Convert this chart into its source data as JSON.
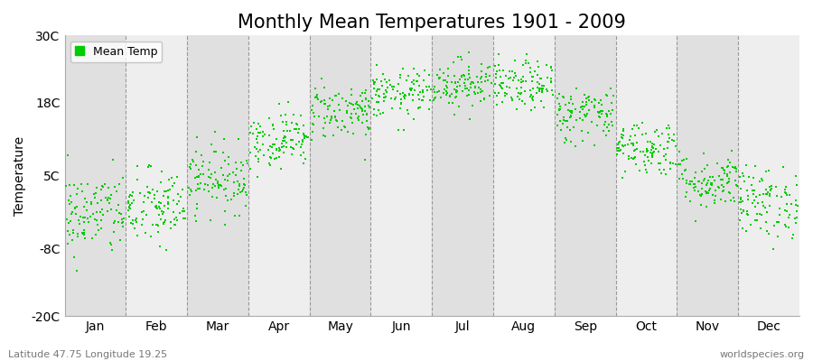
{
  "title": "Monthly Mean Temperatures 1901 - 2009",
  "ylabel": "Temperature",
  "ylim": [
    -20,
    30
  ],
  "yticks": [
    -20,
    -8,
    5,
    18,
    30
  ],
  "ytick_labels": [
    "-20C",
    "-8C",
    "5C",
    "18C",
    "30C"
  ],
  "months": [
    "Jan",
    "Feb",
    "Mar",
    "Apr",
    "May",
    "Jun",
    "Jul",
    "Aug",
    "Sep",
    "Oct",
    "Nov",
    "Dec"
  ],
  "dot_color": "#00cc00",
  "background_color": "#eeeeee",
  "alt_band_color": "#e0e0e0",
  "figure_bg": "#ffffff",
  "legend_label": "Mean Temp",
  "subtitle_left": "Latitude 47.75 Longitude 19.25",
  "subtitle_right": "worldspecies.org",
  "monthly_means": [
    -1.8,
    -0.8,
    4.5,
    11.5,
    16.5,
    19.5,
    21.5,
    21.0,
    16.0,
    10.0,
    4.0,
    0.2
  ],
  "monthly_stds": [
    3.8,
    3.5,
    3.0,
    2.5,
    2.5,
    2.2,
    2.2,
    2.2,
    2.5,
    2.5,
    2.5,
    3.2
  ],
  "n_years": 109,
  "seed": 42,
  "title_fontsize": 15,
  "axis_fontsize": 10,
  "tick_fontsize": 10,
  "legend_fontsize": 9,
  "annotation_fontsize": 8
}
